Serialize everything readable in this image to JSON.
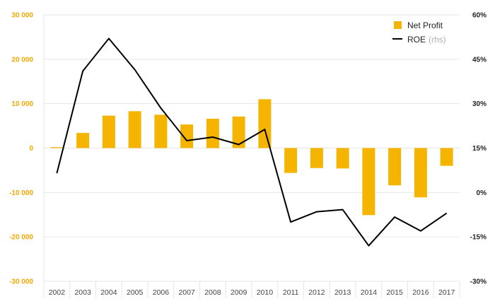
{
  "chart_data": {
    "type": "bar+line",
    "title": "",
    "categories": [
      "2002",
      "2003",
      "2004",
      "2005",
      "2006",
      "2007",
      "2008",
      "2009",
      "2010",
      "2011",
      "2012",
      "2013",
      "2014",
      "2015",
      "2016",
      "2017"
    ],
    "series": [
      {
        "name": "Net Profit",
        "type": "bar",
        "axis": "left",
        "color": "#f4b400",
        "values": [
          200,
          3400,
          7300,
          8300,
          7500,
          5300,
          6600,
          7100,
          11000,
          -5600,
          -4500,
          -4600,
          -15100,
          -8400,
          -11100,
          -4000
        ]
      },
      {
        "name": "ROE",
        "suffix": "(rhs)",
        "type": "line",
        "axis": "right",
        "color": "#000000",
        "values": [
          6.5,
          41,
          52,
          41.5,
          28.5,
          17.5,
          18.7,
          16.2,
          21.3,
          -10,
          -6.5,
          -5.8,
          -18,
          -8.3,
          -13,
          -7
        ]
      }
    ],
    "left_axis": {
      "ylim": [
        -30000,
        30000
      ],
      "ticks": [
        30000,
        20000,
        10000,
        0,
        -10000,
        -20000,
        -30000
      ],
      "tick_labels": [
        "30 000",
        "20 000",
        "10 000",
        "0",
        "-10 000",
        "-20 000",
        "-30 000"
      ],
      "color": "#f4a800"
    },
    "right_axis": {
      "ylim": [
        -30,
        60
      ],
      "ticks": [
        60,
        45,
        30,
        15,
        0,
        -15,
        -30
      ],
      "tick_labels": [
        "60%",
        "45%",
        "30%",
        "15%",
        "0%",
        "-15%",
        "-30%"
      ]
    },
    "legend": {
      "position": "top-right",
      "items": [
        {
          "label": "Net Profit",
          "sub": ""
        },
        {
          "label": "ROE",
          "sub": "(rhs)"
        }
      ]
    },
    "grid": true
  }
}
